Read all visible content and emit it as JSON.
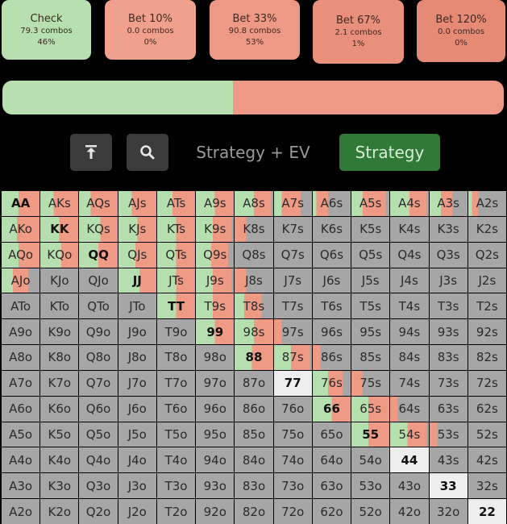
{
  "actions": [
    {
      "label": "Check",
      "combos": "79.3 combos",
      "pct": "46%",
      "color": "#b7dfb0"
    },
    {
      "label": "Bet 10%",
      "combos": "0.0 combos",
      "pct": "0%",
      "color": "#f0a18d"
    },
    {
      "label": "Bet 33%",
      "combos": "90.8 combos",
      "pct": "53%",
      "color": "#ee9985"
    },
    {
      "label": "Bet 67%",
      "combos": "2.1 combos",
      "pct": "1%",
      "color": "#e9907c"
    },
    {
      "label": "Bet 120%",
      "combos": "0.0 combos",
      "pct": "0%",
      "color": "#e68a75"
    }
  ],
  "frequency_bar": {
    "check_fraction": 0.46,
    "check_color": "#b7dfb0",
    "bet_color": "#ee9985"
  },
  "toolbar": {
    "upload_icon": "upload-icon",
    "search_icon": "search-icon",
    "tab_strategy_ev": "Strategy + EV",
    "tab_strategy": "Strategy"
  },
  "colors": {
    "check": "#b5dfae",
    "bet": "#ee9a84",
    "fold": "#a6a6a6",
    "highlight": "#eeeeee"
  },
  "grid": {
    "rows": [
      [
        "AA",
        "AKs",
        "AQs",
        "AJs",
        "ATs",
        "A9s",
        "A8s",
        "A7s",
        "A6s",
        "A5s",
        "A4s",
        "A3s",
        "A2s"
      ],
      [
        "AKo",
        "KK",
        "KQs",
        "KJs",
        "KTs",
        "K9s",
        "K8s",
        "K7s",
        "K6s",
        "K5s",
        "K4s",
        "K3s",
        "K2s"
      ],
      [
        "AQo",
        "KQo",
        "QQ",
        "QJs",
        "QTs",
        "Q9s",
        "Q8s",
        "Q7s",
        "Q6s",
        "Q5s",
        "Q4s",
        "Q3s",
        "Q2s"
      ],
      [
        "AJo",
        "KJo",
        "QJo",
        "JJ",
        "JTs",
        "J9s",
        "J8s",
        "J7s",
        "J6s",
        "J5s",
        "J4s",
        "J3s",
        "J2s"
      ],
      [
        "ATo",
        "KTo",
        "QTo",
        "JTo",
        "TT",
        "T9s",
        "T8s",
        "T7s",
        "T6s",
        "T5s",
        "T4s",
        "T3s",
        "T2s"
      ],
      [
        "A9o",
        "K9o",
        "Q9o",
        "J9o",
        "T9o",
        "99",
        "98s",
        "97s",
        "96s",
        "95s",
        "94s",
        "93s",
        "92s"
      ],
      [
        "A8o",
        "K8o",
        "Q8o",
        "J8o",
        "T8o",
        "98o",
        "88",
        "87s",
        "86s",
        "85s",
        "84s",
        "83s",
        "82s"
      ],
      [
        "A7o",
        "K7o",
        "Q7o",
        "J7o",
        "T7o",
        "97o",
        "87o",
        "77",
        "76s",
        "75s",
        "74s",
        "73s",
        "72s"
      ],
      [
        "A6o",
        "K6o",
        "Q6o",
        "J6o",
        "T6o",
        "96o",
        "86o",
        "76o",
        "66",
        "65s",
        "64s",
        "63s",
        "62s"
      ],
      [
        "A5o",
        "K5o",
        "Q5o",
        "J5o",
        "T5o",
        "95o",
        "85o",
        "75o",
        "65o",
        "55",
        "54s",
        "53s",
        "52s"
      ],
      [
        "A4o",
        "K4o",
        "Q4o",
        "J4o",
        "T4o",
        "94o",
        "84o",
        "74o",
        "64o",
        "54o",
        "44",
        "43s",
        "42s"
      ],
      [
        "A3o",
        "K3o",
        "Q3o",
        "J3o",
        "T3o",
        "93o",
        "83o",
        "73o",
        "63o",
        "53o",
        "43o",
        "33",
        "32s"
      ],
      [
        "A2o",
        "K2o",
        "Q2o",
        "J2o",
        "T2o",
        "92o",
        "82o",
        "72o",
        "62o",
        "52o",
        "42o",
        "32o",
        "22"
      ]
    ],
    "check_fraction": [
      [
        0.45,
        0.35,
        0.3,
        0.35,
        0.4,
        0.5,
        0.5,
        0.2,
        0.1,
        0.3,
        0.5,
        0.3,
        0.1
      ],
      [
        0.4,
        0.5,
        0.55,
        0.5,
        0.5,
        0.45,
        0,
        0,
        0,
        0,
        0,
        0,
        0
      ],
      [
        0.45,
        0.55,
        0.5,
        0.45,
        0.5,
        0.4,
        0,
        0,
        0,
        0,
        0,
        0,
        0
      ],
      [
        0.3,
        0,
        0,
        0.55,
        0.5,
        0.45,
        0,
        0,
        0,
        0,
        0,
        0,
        0
      ],
      [
        0,
        0,
        0,
        0,
        0.5,
        0.45,
        0.25,
        0,
        0,
        0,
        0,
        0,
        0
      ],
      [
        0,
        0,
        0,
        0,
        0,
        0.5,
        0.5,
        0,
        0,
        0,
        0,
        0,
        0
      ],
      [
        0,
        0,
        0,
        0,
        0,
        0,
        0.45,
        0.45,
        0,
        0,
        0,
        0,
        0
      ],
      [
        0,
        0,
        0,
        0,
        0,
        0,
        0,
        0,
        0.4,
        0,
        0,
        0,
        0
      ],
      [
        0,
        0,
        0,
        0,
        0,
        0,
        0,
        0,
        0.5,
        0.45,
        0,
        0,
        0
      ],
      [
        0,
        0,
        0,
        0,
        0,
        0,
        0,
        0,
        0,
        0.45,
        0.45,
        0,
        0
      ],
      [
        0,
        0,
        0,
        0,
        0,
        0,
        0,
        0,
        0,
        0,
        0,
        0,
        0
      ],
      [
        0,
        0,
        0,
        0,
        0,
        0,
        0,
        0,
        0,
        0,
        0,
        0,
        0
      ],
      [
        0,
        0,
        0,
        0,
        0,
        0,
        0,
        0,
        0,
        0,
        0,
        0,
        0
      ]
    ],
    "bet_fraction": [
      [
        0.55,
        0.65,
        0.7,
        0.65,
        0.6,
        0.5,
        0.45,
        0.5,
        0.3,
        0.6,
        0.45,
        0.3,
        0.15
      ],
      [
        0.6,
        0.5,
        0.45,
        0.5,
        0.5,
        0.5,
        0.3,
        0,
        0,
        0,
        0,
        0,
        0
      ],
      [
        0.55,
        0.45,
        0.5,
        0.55,
        0.5,
        0.45,
        0,
        0,
        0,
        0,
        0,
        0,
        0
      ],
      [
        0.4,
        0,
        0,
        0.45,
        0.5,
        0.5,
        0.3,
        0,
        0,
        0,
        0,
        0,
        0
      ],
      [
        0,
        0,
        0,
        0,
        0.5,
        0.55,
        0.45,
        0,
        0,
        0,
        0,
        0,
        0
      ],
      [
        0,
        0,
        0,
        0,
        0,
        0.5,
        0.5,
        0.2,
        0,
        0,
        0,
        0,
        0
      ],
      [
        0,
        0,
        0,
        0,
        0,
        0,
        0.55,
        0.5,
        0.2,
        0,
        0,
        0,
        0
      ],
      [
        0,
        0,
        0,
        0,
        0,
        0,
        0,
        0,
        0.4,
        0.3,
        0,
        0,
        0
      ],
      [
        0,
        0,
        0,
        0,
        0,
        0,
        0,
        0,
        0.5,
        0.55,
        0.2,
        0,
        0
      ],
      [
        0,
        0,
        0,
        0,
        0,
        0,
        0,
        0,
        0,
        0.55,
        0.5,
        0.2,
        0
      ],
      [
        0,
        0,
        0,
        0,
        0,
        0,
        0,
        0,
        0,
        0,
        0,
        0,
        0
      ],
      [
        0,
        0,
        0,
        0,
        0,
        0,
        0,
        0,
        0,
        0,
        0,
        0,
        0
      ],
      [
        0,
        0,
        0,
        0,
        0,
        0,
        0,
        0,
        0,
        0,
        0,
        0,
        0
      ]
    ],
    "highlighted": [
      "77",
      "44",
      "33",
      "22"
    ]
  }
}
